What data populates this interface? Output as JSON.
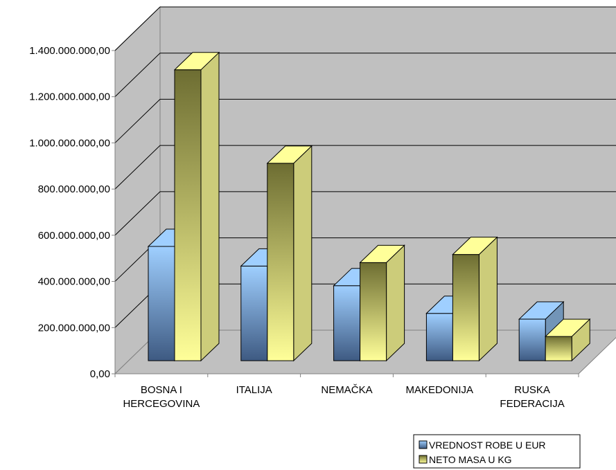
{
  "chart_data": {
    "type": "bar",
    "style": "3d-clustered-column",
    "categories": [
      [
        "BOSNA I",
        "HERCEGOVINA"
      ],
      [
        "ITALIJA"
      ],
      [
        "NEMAČKA"
      ],
      [
        "MAKEDONIJA"
      ],
      [
        "RUSKA",
        "FEDERACIJA"
      ]
    ],
    "series": [
      {
        "name": "VREDNOST ROBE U EUR",
        "values": [
          495000000,
          410000000,
          325000000,
          205000000,
          180000000
        ],
        "color_light": "#9fcfff",
        "color_dark": "#3e5a82"
      },
      {
        "name": "NETO MASA U KG",
        "values": [
          1260000000,
          855000000,
          425000000,
          460000000,
          105000000
        ],
        "color_light": "#ffff99",
        "color_dark": "#6d6d32"
      }
    ],
    "ylim": [
      0,
      1400000000
    ],
    "yticks": [
      0,
      200000000,
      400000000,
      600000000,
      800000000,
      1000000000,
      1200000000,
      1400000000
    ],
    "ytick_labels": [
      "0,00",
      "200.000.000,00",
      "400.000.000,00",
      "600.000.000,00",
      "800.000.000,00",
      "1.000.000.000,00",
      "1.200.000.000,00",
      "1.400.000.000,00"
    ],
    "grid": true,
    "wall_color": "#c0c0c0",
    "legend_position": "bottom-right",
    "title": "",
    "xlabel": "",
    "ylabel": ""
  }
}
